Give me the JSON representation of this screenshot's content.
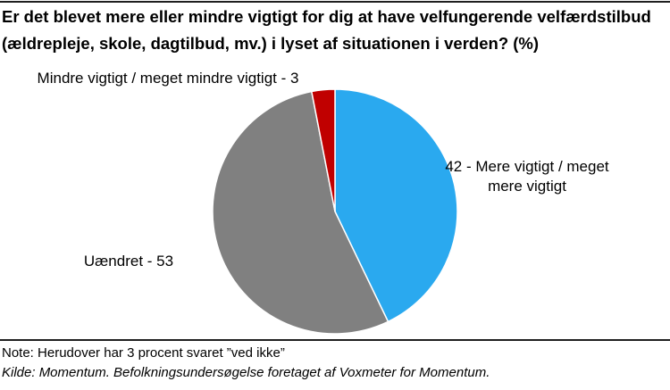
{
  "title_line1": "Er det blevet mere eller mindre vigtigt for dig at have velfungerende velfærdstilbud",
  "title_line2": "(ældrepleje, skole, dagtilbud, mv.) i lyset af situationen i verden? (%)",
  "note": "Note: Herudover har 3 procent svaret ”ved ikke”",
  "source": "Kilde: Momentum. Befolkningsundersøgelse foretaget af Voxmeter for Momentum.",
  "chart_data": {
    "type": "pie",
    "title": "Er det blevet mere eller mindre vigtigt for dig at have velfungerende velfærdstilbud (ældrepleje, skole, dagtilbud, mv.) i lyset af situationen i verden? (%)",
    "slices": [
      {
        "label": "Mere vigtigt / meget mere vigtigt",
        "value": 42,
        "color": "#2aa9ef",
        "data_label": [
          "42 - Mere vigtigt / meget",
          "mere vigtigt"
        ]
      },
      {
        "label": "Uændret",
        "value": 53,
        "color": "#808080",
        "data_label": [
          "Uændret - 53"
        ]
      },
      {
        "label": "Mindre vigtigt / meget mindre vigtigt",
        "value": 3,
        "color": "#c00000",
        "data_label": [
          "Mindre vigtigt / meget mindre vigtigt - 3"
        ]
      }
    ],
    "start_angle": "12 o'clock",
    "direction": "clockwise",
    "legend": "none"
  }
}
